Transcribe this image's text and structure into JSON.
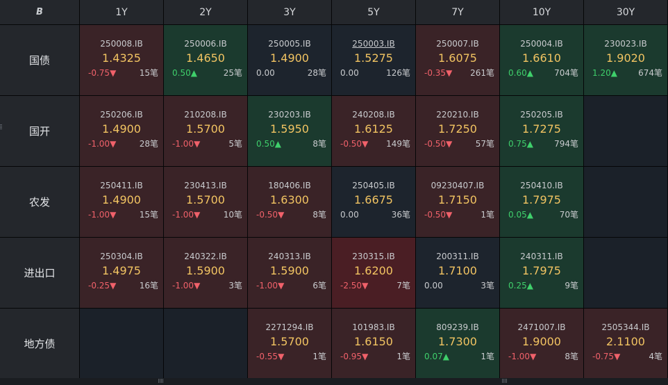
{
  "logo_text": "B",
  "columns": [
    "1Y",
    "2Y",
    "3Y",
    "5Y",
    "7Y",
    "10Y",
    "30Y"
  ],
  "rows": [
    {
      "label": "国债",
      "cells": [
        {
          "code": "250008.IB",
          "price": "1.4325",
          "change": "-0.75",
          "direction": "down",
          "count": "15笔",
          "tone": "down"
        },
        {
          "code": "250006.IB",
          "price": "1.4650",
          "change": "0.50",
          "direction": "up",
          "count": "25笔",
          "tone": "up"
        },
        {
          "code": "250005.IB",
          "price": "1.4900",
          "change": "0.00",
          "direction": "none",
          "count": "28笔",
          "tone": "neutral"
        },
        {
          "code": "250003.IB",
          "price": "1.5275",
          "change": "0.00",
          "direction": "none",
          "count": "126笔",
          "tone": "neutral",
          "underline": true
        },
        {
          "code": "250007.IB",
          "price": "1.6075",
          "change": "-0.35",
          "direction": "down",
          "count": "261笔",
          "tone": "down"
        },
        {
          "code": "250004.IB",
          "price": "1.6610",
          "change": "0.60",
          "direction": "up",
          "count": "704笔",
          "tone": "up"
        },
        {
          "code": "230023.IB",
          "price": "1.9020",
          "change": "1.20",
          "direction": "up",
          "count": "674笔",
          "tone": "up"
        }
      ]
    },
    {
      "label": "国开",
      "cells": [
        {
          "code": "250206.IB",
          "price": "1.4900",
          "change": "-1.00",
          "direction": "down",
          "count": "28笔",
          "tone": "down"
        },
        {
          "code": "210208.IB",
          "price": "1.5700",
          "change": "-1.00",
          "direction": "down",
          "count": "5笔",
          "tone": "down"
        },
        {
          "code": "230203.IB",
          "price": "1.5950",
          "change": "0.50",
          "direction": "up",
          "count": "8笔",
          "tone": "up"
        },
        {
          "code": "240208.IB",
          "price": "1.6125",
          "change": "-0.50",
          "direction": "down",
          "count": "149笔",
          "tone": "down"
        },
        {
          "code": "220210.IB",
          "price": "1.7250",
          "change": "-0.50",
          "direction": "down",
          "count": "57笔",
          "tone": "down"
        },
        {
          "code": "250205.IB",
          "price": "1.7275",
          "change": "0.75",
          "direction": "up",
          "count": "794笔",
          "tone": "up"
        },
        null
      ]
    },
    {
      "label": "农发",
      "cells": [
        {
          "code": "250411.IB",
          "price": "1.4900",
          "change": "-1.00",
          "direction": "down",
          "count": "15笔",
          "tone": "down"
        },
        {
          "code": "230413.IB",
          "price": "1.5700",
          "change": "-1.00",
          "direction": "down",
          "count": "10笔",
          "tone": "down"
        },
        {
          "code": "180406.IB",
          "price": "1.6300",
          "change": "-0.50",
          "direction": "down",
          "count": "8笔",
          "tone": "down"
        },
        {
          "code": "250405.IB",
          "price": "1.6675",
          "change": "0.00",
          "direction": "none",
          "count": "36笔",
          "tone": "neutral"
        },
        {
          "code": "09230407.IB",
          "price": "1.7150",
          "change": "-0.50",
          "direction": "down",
          "count": "1笔",
          "tone": "down"
        },
        {
          "code": "250410.IB",
          "price": "1.7975",
          "change": "0.05",
          "direction": "up",
          "count": "70笔",
          "tone": "up"
        },
        null
      ]
    },
    {
      "label": "进出口",
      "cells": [
        {
          "code": "250304.IB",
          "price": "1.4975",
          "change": "-0.25",
          "direction": "down",
          "count": "16笔",
          "tone": "down"
        },
        {
          "code": "240322.IB",
          "price": "1.5900",
          "change": "-1.00",
          "direction": "down",
          "count": "3笔",
          "tone": "down"
        },
        {
          "code": "240313.IB",
          "price": "1.5900",
          "change": "-1.00",
          "direction": "down",
          "count": "6笔",
          "tone": "down"
        },
        {
          "code": "230315.IB",
          "price": "1.6200",
          "change": "-2.50",
          "direction": "down",
          "count": "7笔",
          "tone": "downstrong"
        },
        {
          "code": "200311.IB",
          "price": "1.7100",
          "change": "0.00",
          "direction": "none",
          "count": "3笔",
          "tone": "neutral"
        },
        {
          "code": "240311.IB",
          "price": "1.7975",
          "change": "0.25",
          "direction": "up",
          "count": "9笔",
          "tone": "up"
        },
        null
      ]
    },
    {
      "label": "地方债",
      "cells": [
        null,
        null,
        {
          "code": "2271294.IB",
          "price": "1.5700",
          "change": "-0.55",
          "direction": "down",
          "count": "1笔",
          "tone": "down"
        },
        {
          "code": "101983.IB",
          "price": "1.6150",
          "change": "-0.95",
          "direction": "down",
          "count": "1笔",
          "tone": "down"
        },
        {
          "code": "809239.IB",
          "price": "1.7300",
          "change": "0.07",
          "direction": "up",
          "count": "1笔",
          "tone": "up"
        },
        {
          "code": "2471007.IB",
          "price": "1.9000",
          "change": "-1.00",
          "direction": "down",
          "count": "8笔",
          "tone": "down"
        },
        {
          "code": "2505344.IB",
          "price": "2.1100",
          "change": "-0.75",
          "direction": "down",
          "count": "4笔",
          "tone": "down"
        }
      ]
    }
  ],
  "arrows": {
    "up": "▲",
    "down": "▼"
  },
  "colors": {
    "up": "#3fcf6b",
    "down": "#f0616a",
    "price": "#f2c462",
    "header_bg": "#24272c"
  }
}
